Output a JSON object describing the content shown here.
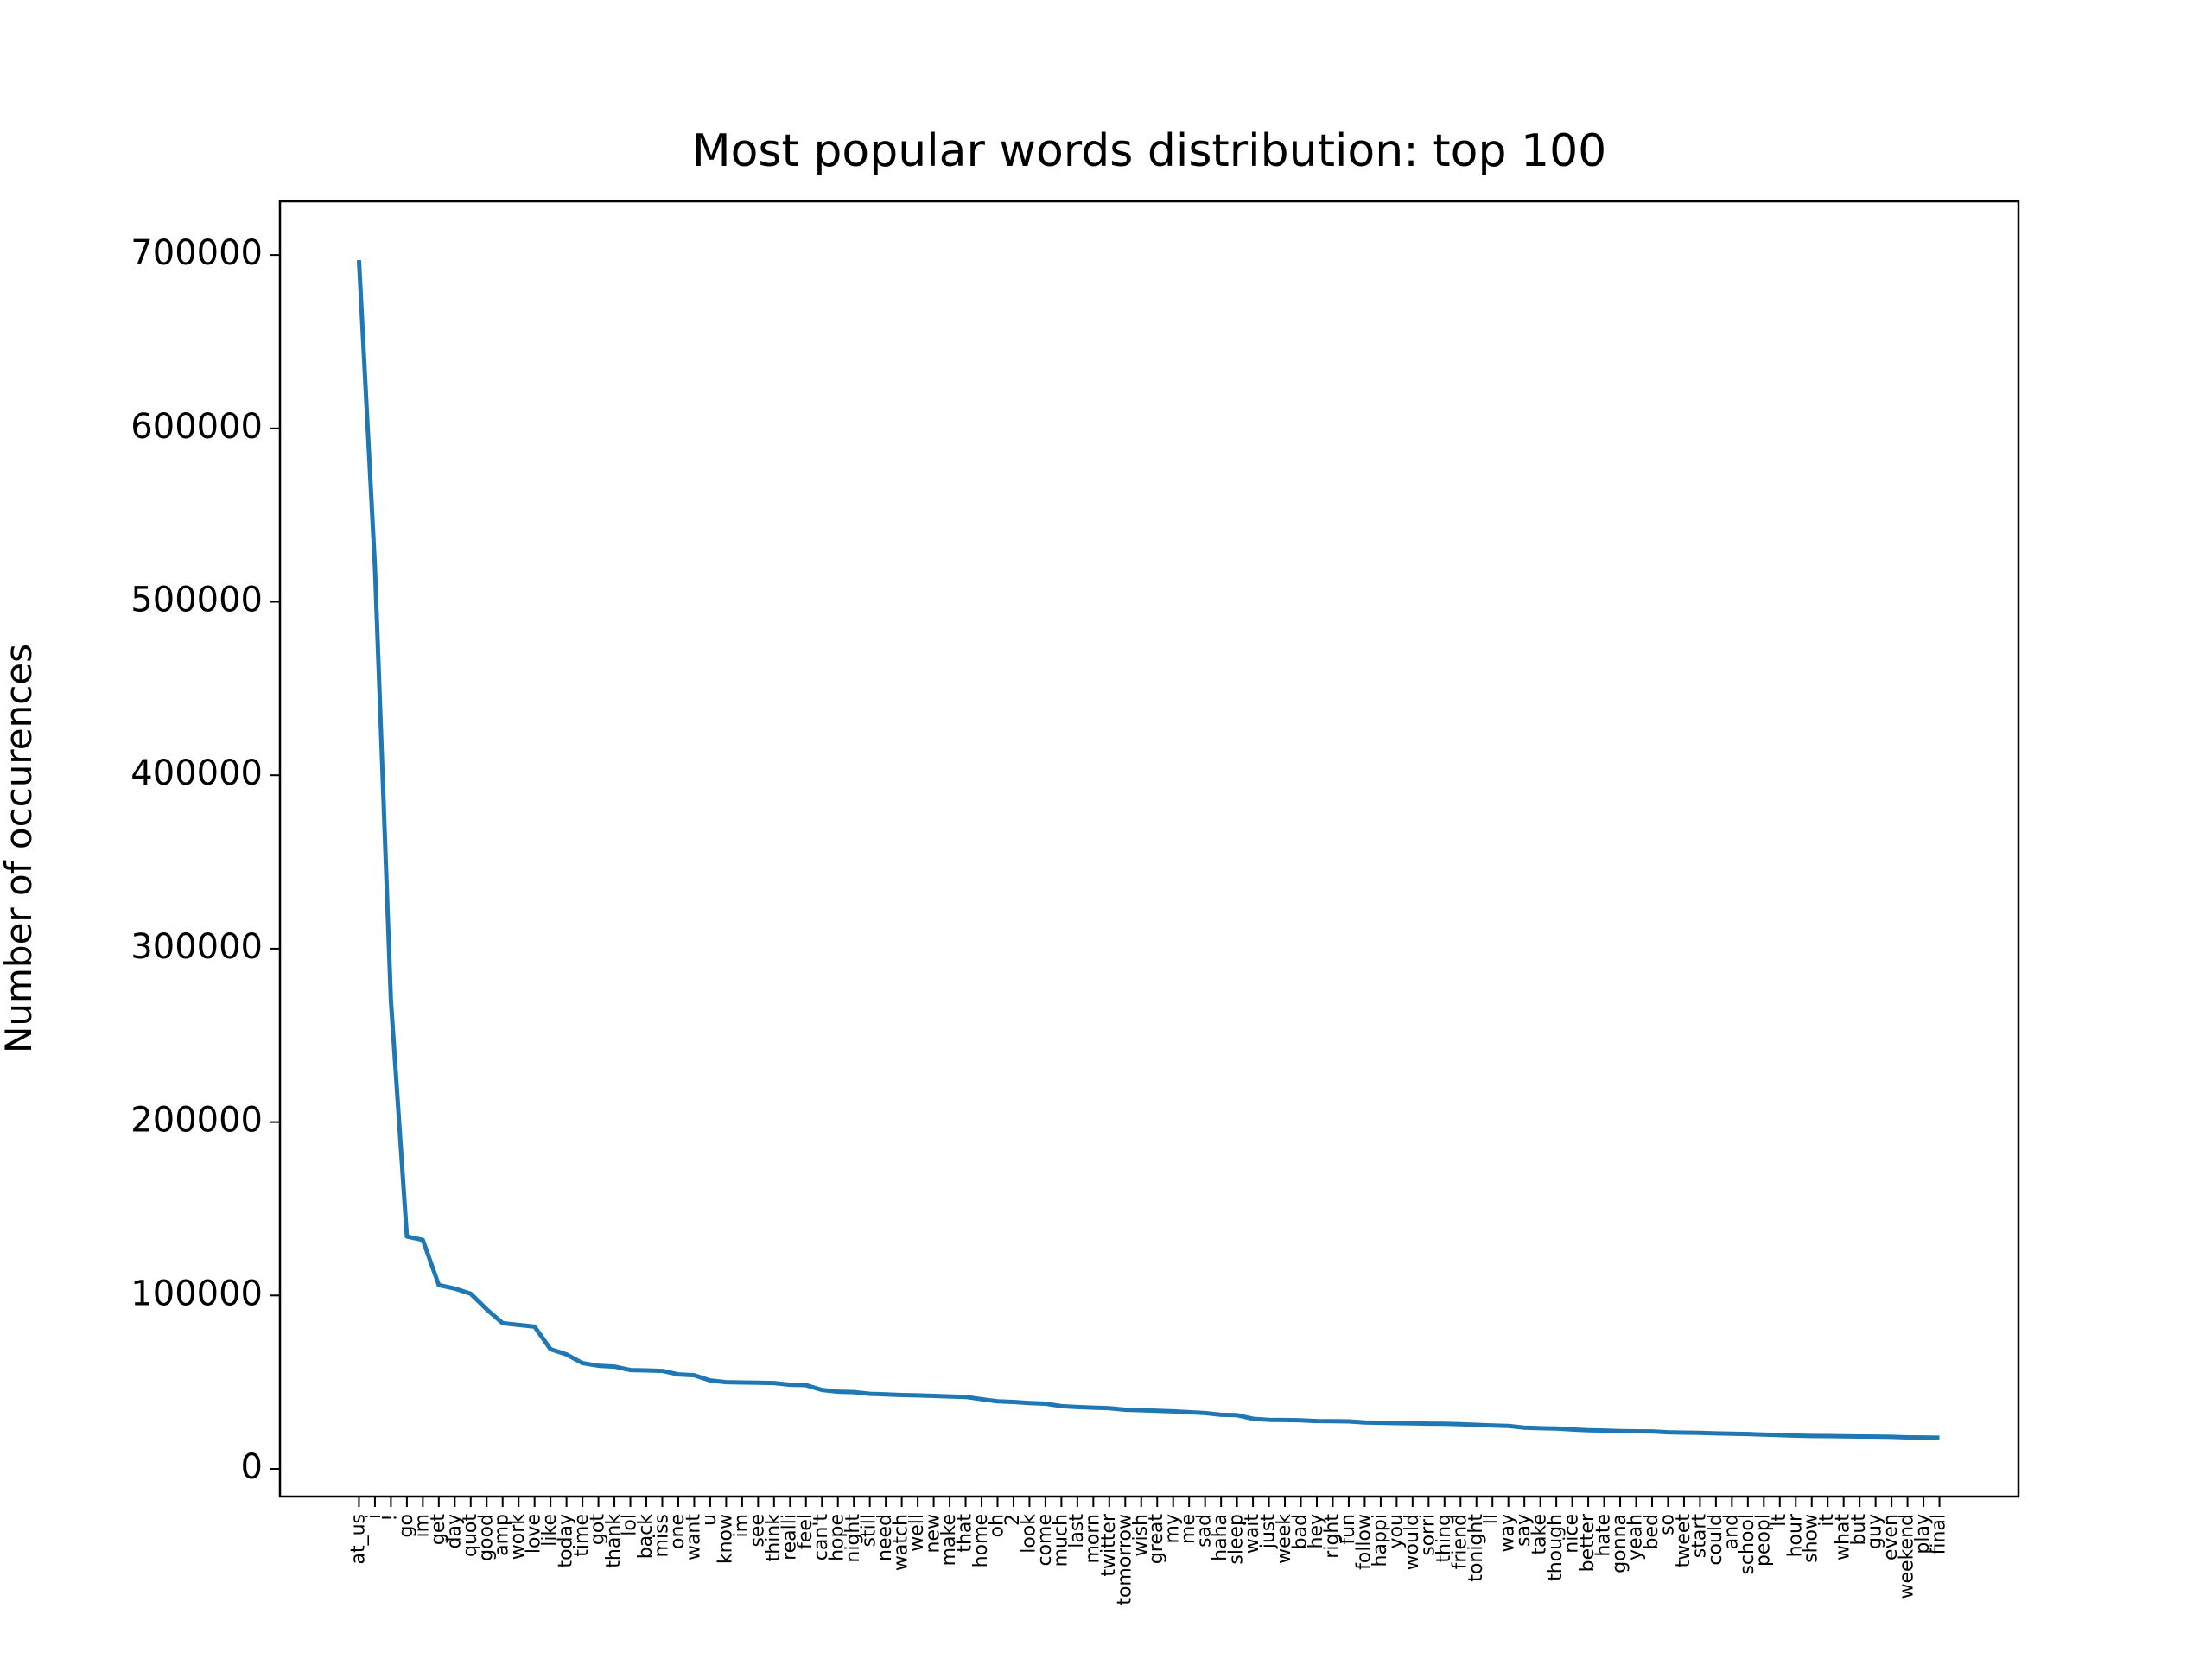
{
  "chart_data": {
    "type": "line",
    "title": "Most popular words distribution: top 100",
    "y_label": "Number of occurences",
    "categories": [
      "at_us",
      "i",
      "!",
      "go",
      "im",
      "get",
      "day",
      "quot",
      "good",
      "amp",
      "work",
      "love",
      "like",
      "today",
      "time",
      "got",
      "thank",
      "lol",
      "back",
      "miss",
      "one",
      "want",
      "u",
      "know",
      "im",
      "see",
      "think",
      "realli",
      "feel",
      "can't",
      "hope",
      "night",
      "still",
      "need",
      "watch",
      "well",
      "new",
      "make",
      "that",
      "home",
      "oh",
      "2",
      "look",
      "come",
      "much",
      "last",
      "morn",
      "twitter",
      "tomorrow",
      "wish",
      "great",
      "my",
      "me",
      "sad",
      "haha",
      "sleep",
      "wait",
      "just",
      "week",
      "bad",
      "hey",
      "right",
      "fun",
      "follow",
      "happi",
      "you",
      "would",
      "sorri",
      "thing",
      "friend",
      "tonight",
      "ll",
      "way",
      "say",
      "take",
      "though",
      "nice",
      "better",
      "hate",
      "gonna",
      "yeah",
      "bed",
      "so",
      "tweet",
      "start",
      "could",
      "and",
      "school",
      "peopl",
      "lt",
      "hour",
      "show",
      "it",
      "what",
      "but",
      "guy",
      "even",
      "weekend",
      "play",
      "final"
    ],
    "series": [
      {
        "name": "Number of occurences",
        "color": "#1f77b4",
        "values": [
          697000,
          520000,
          270000,
          134000,
          132000,
          106000,
          104000,
          101000,
          92000,
          84000,
          83000,
          82000,
          69000,
          66000,
          61000,
          59500,
          59000,
          57000,
          56800,
          56500,
          54500,
          54000,
          51000,
          50000,
          49800,
          49700,
          49500,
          48500,
          48300,
          45500,
          44500,
          44300,
          43300,
          43000,
          42600,
          42400,
          42100,
          41800,
          41500,
          40200,
          39000,
          38600,
          38000,
          37600,
          36200,
          35700,
          35300,
          35000,
          34100,
          33800,
          33500,
          33200,
          32700,
          32200,
          31200,
          31000,
          28900,
          28300,
          28200,
          28000,
          27600,
          27500,
          27400,
          26800,
          26600,
          26400,
          26300,
          26100,
          26000,
          25800,
          25400,
          25000,
          24800,
          23800,
          23500,
          23300,
          22700,
          22300,
          22100,
          21800,
          21700,
          21600,
          21100,
          20900,
          20800,
          20500,
          20300,
          20100,
          19800,
          19500,
          19200,
          19000,
          18900,
          18800,
          18700,
          18600,
          18500,
          18200,
          18100,
          18000
        ]
      }
    ],
    "ylim": [
      -15950,
      730950
    ],
    "yticks": [
      0,
      100000,
      200000,
      300000,
      400000,
      500000,
      600000,
      700000
    ],
    "grid": false
  }
}
